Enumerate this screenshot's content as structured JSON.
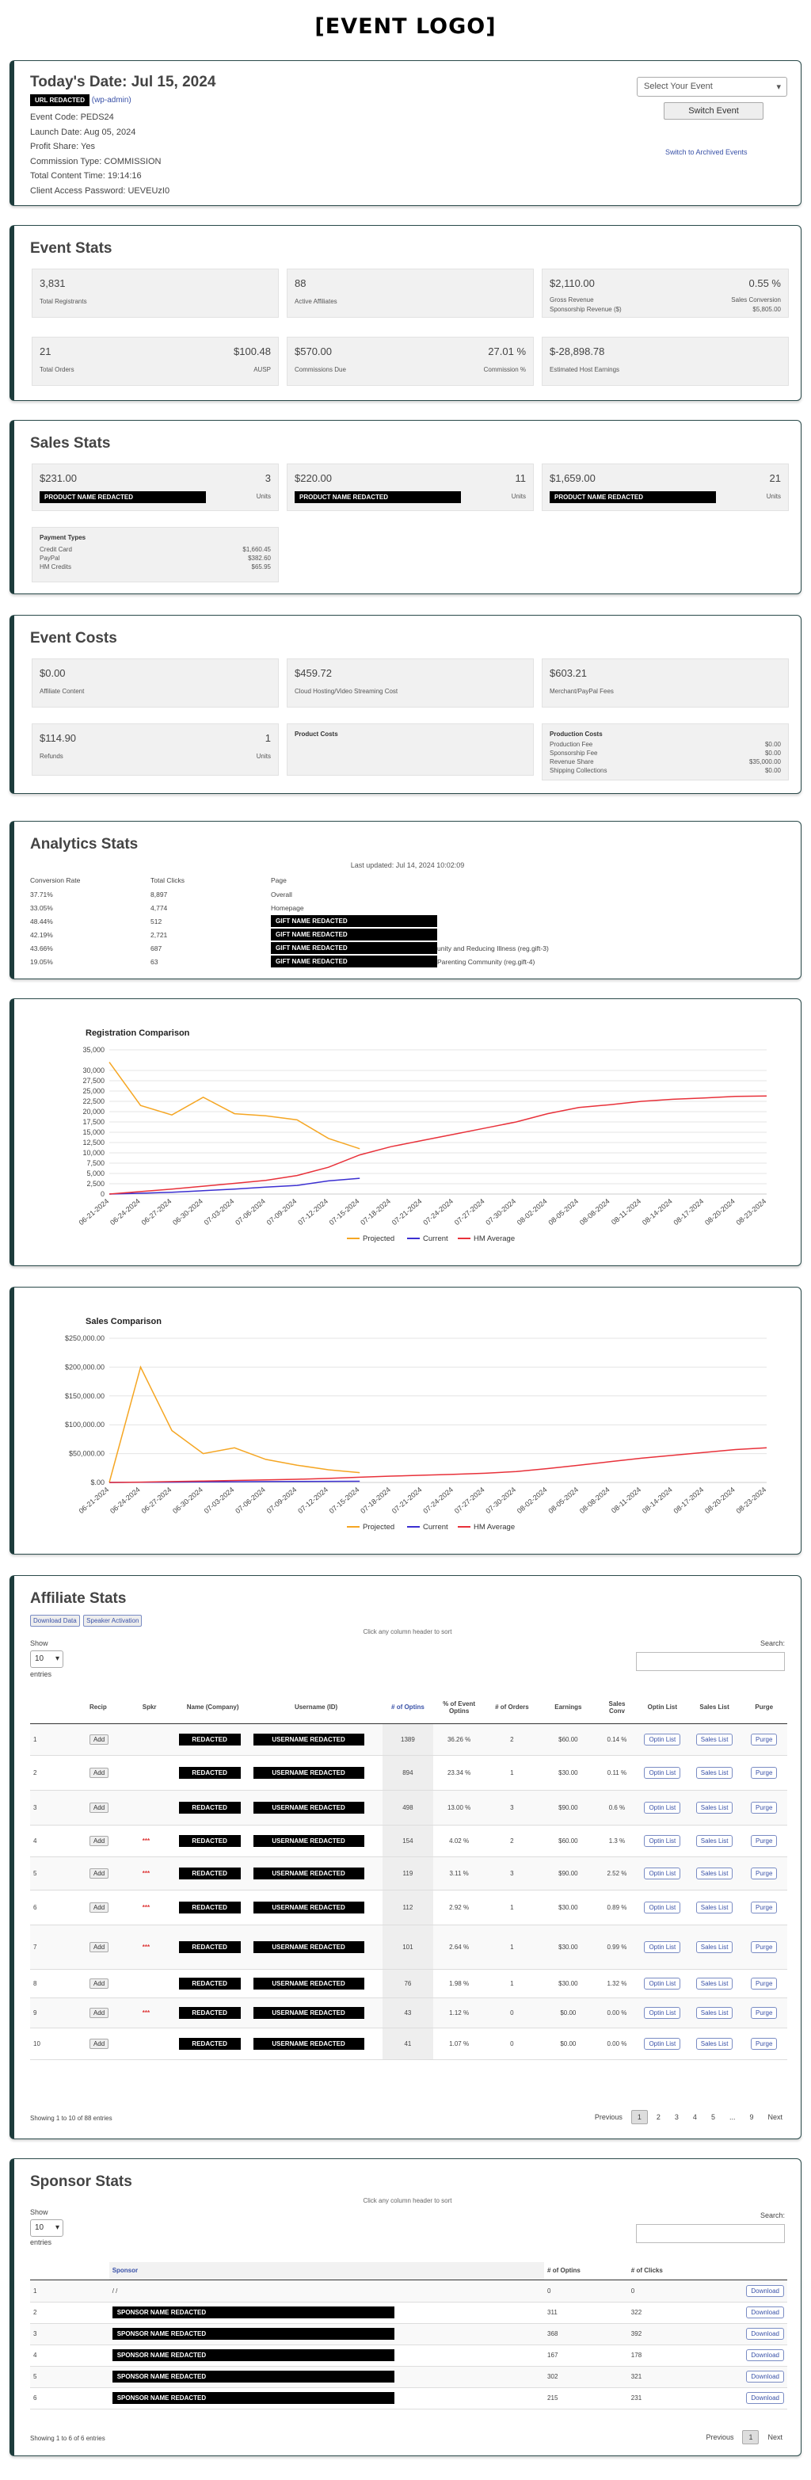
{
  "logo": "[EVENT LOGO]",
  "info": {
    "date_label": "Today's Date: Jul 15, 2024",
    "url": "URL REDACTED",
    "wp_admin": "(wp-admin)",
    "lines": [
      "Event Code: PEDS24",
      "Launch Date: Aug 05, 2024",
      "Profit Share: Yes",
      "Commission Type: COMMISSION",
      "Total Content Time: 19:14:16",
      "Client Access Password: UEVEUzI0"
    ],
    "select_placeholder": "Select Your Event",
    "switch_btn": "Switch Event",
    "archived_link": "Switch to Archived Events"
  },
  "event_stats": {
    "title": "Event Stats",
    "boxes": [
      {
        "v": "3,831",
        "l": "Total Registrants"
      },
      {
        "v": "88",
        "l": "Active Affiliates"
      },
      {
        "v": "$2,110.00",
        "vr": "0.55 %",
        "l": "Gross Revenue",
        "lr": "Sales Conversion",
        "l2": "Sponsorship Revenue ($)",
        "l2r": "$5,805.00"
      },
      {
        "v": "21",
        "vr": "$100.48",
        "l": "Total Orders",
        "lr": "AUSP"
      },
      {
        "v": "$570.00",
        "vr": "27.01 %",
        "l": "Commissions Due",
        "lr": "Commission %"
      },
      {
        "v": "$-28,898.78",
        "l": "Estimated Host Earnings"
      }
    ]
  },
  "sales_stats": {
    "title": "Sales Stats",
    "boxes": [
      {
        "v": "$231.00",
        "vr": "3",
        "name": "PRODUCT NAME REDACTED",
        "lr": "Units"
      },
      {
        "v": "$220.00",
        "vr": "11",
        "name": "PRODUCT NAME REDACTED",
        "lr": "Units"
      },
      {
        "v": "$1,659.00",
        "vr": "21",
        "name": "PRODUCT NAME REDACTED",
        "lr": "Units"
      }
    ],
    "payment": {
      "title": "Payment Types",
      "rows": [
        [
          "Credit Card",
          "$1,660.45"
        ],
        [
          "PayPal",
          "$382.60"
        ],
        [
          "HM Credits",
          "$65.95"
        ]
      ]
    }
  },
  "event_costs": {
    "title": "Event Costs",
    "boxes": [
      {
        "v": "$0.00",
        "l": "Affiliate Content"
      },
      {
        "v": "$459.72",
        "l": "Cloud Hosting/Video Streaming Cost"
      },
      {
        "v": "$603.21",
        "l": "Merchant/PayPal Fees"
      },
      {
        "v": "$114.90",
        "vr": "1",
        "l": "Refunds",
        "lr": "Units"
      }
    ],
    "product_costs": "Product Costs",
    "production": {
      "title": "Production Costs",
      "rows": [
        [
          "Production Fee",
          "$0.00"
        ],
        [
          "Sponsorship Fee",
          "$0.00"
        ],
        [
          "Revenue Share",
          "$35,000.00"
        ],
        [
          "Shipping Collections",
          "$0.00"
        ]
      ]
    }
  },
  "analytics": {
    "title": "Analytics Stats",
    "updated": "Last updated: Jul 14, 2024 10:02:09",
    "headers": [
      "Conversion Rate",
      "Total Clicks",
      "Page"
    ],
    "rows": [
      [
        "37.71%",
        "8,897",
        "Overall",
        ""
      ],
      [
        "33.05%",
        "4,774",
        "Homepage",
        ""
      ],
      [
        "48.44%",
        "512",
        "GIFT NAME REDACTED",
        ""
      ],
      [
        "42.19%",
        "2,721",
        "GIFT NAME REDACTED",
        ""
      ],
      [
        "43.66%",
        "687",
        "GIFT NAME REDACTED",
        "unity and Reducing Illness (reg.gift-3)"
      ],
      [
        "19.05%",
        "63",
        "GIFT NAME REDACTED",
        "Parenting Community (reg.gift-4)"
      ]
    ]
  },
  "reg_chart_title": "Registration Comparison",
  "sales_chart_title": "Sales Comparison",
  "legend": [
    "Projected",
    "Current",
    "HM Average"
  ],
  "chart_data": [
    {
      "type": "line",
      "title": "Registration Comparison",
      "ylim": [
        0,
        35000
      ],
      "yticks": [
        "0",
        "2,500",
        "5,000",
        "7,500",
        "10,000",
        "12,500",
        "15,000",
        "17,500",
        "20,000",
        "22,500",
        "25,000",
        "27,500",
        "30,000",
        "35,000"
      ],
      "x": [
        "06-21-2024",
        "06-24-2024",
        "06-27-2024",
        "06-30-2024",
        "07-03-2024",
        "07-06-2024",
        "07-09-2024",
        "07-12-2024",
        "07-15-2024",
        "07-18-2024",
        "07-21-2024",
        "07-24-2024",
        "07-27-2024",
        "07-30-2024",
        "08-02-2024",
        "08-05-2024",
        "08-08-2024",
        "08-11-2024",
        "08-14-2024",
        "08-17-2024",
        "08-20-2024",
        "08-23-2024"
      ],
      "series": [
        {
          "name": "Projected",
          "color": "#f5a623",
          "values": [
            32000,
            21500,
            19200,
            23500,
            19500,
            19000,
            18000,
            13500,
            11000,
            null,
            null,
            null,
            null,
            null,
            null,
            null,
            null,
            null,
            null,
            null,
            null,
            null
          ]
        },
        {
          "name": "Current",
          "color": "#3b2fd1",
          "values": [
            0,
            200,
            450,
            800,
            1200,
            1700,
            2100,
            3200,
            3831,
            null,
            null,
            null,
            null,
            null,
            null,
            null,
            null,
            null,
            null,
            null,
            null,
            null
          ]
        },
        {
          "name": "HM Average",
          "color": "#e8313a",
          "values": [
            0,
            600,
            1200,
            1900,
            2600,
            3300,
            4500,
            6500,
            9500,
            11500,
            13000,
            14500,
            16000,
            17500,
            19500,
            21000,
            21700,
            22500,
            23000,
            23300,
            23700,
            23800
          ]
        }
      ]
    },
    {
      "type": "line",
      "title": "Sales Comparison",
      "ylim": [
        0,
        250000
      ],
      "yticks": [
        "$.00",
        "$50,000.00",
        "$100,000.00",
        "$150,000.00",
        "$200,000.00",
        "$250,000.00"
      ],
      "x": [
        "06-21-2024",
        "06-24-2024",
        "06-27-2024",
        "06-30-2024",
        "07-03-2024",
        "07-06-2024",
        "07-09-2024",
        "07-12-2024",
        "07-15-2024",
        "07-18-2024",
        "07-21-2024",
        "07-24-2024",
        "07-27-2024",
        "07-30-2024",
        "08-02-2024",
        "08-05-2024",
        "08-08-2024",
        "08-11-2024",
        "08-14-2024",
        "08-17-2024",
        "08-20-2024",
        "08-23-2024"
      ],
      "series": [
        {
          "name": "Projected",
          "color": "#f5a623",
          "values": [
            0,
            200000,
            90000,
            50000,
            60000,
            40000,
            30000,
            22000,
            17000,
            null,
            null,
            null,
            null,
            null,
            null,
            null,
            null,
            null,
            null,
            null,
            null,
            null
          ]
        },
        {
          "name": "Current",
          "color": "#3b2fd1",
          "values": [
            0,
            300,
            600,
            900,
            1200,
            1500,
            1700,
            1900,
            2110,
            null,
            null,
            null,
            null,
            null,
            null,
            null,
            null,
            null,
            null,
            null,
            null,
            null
          ]
        },
        {
          "name": "HM Average",
          "color": "#e8313a",
          "values": [
            0,
            500,
            1500,
            2500,
            3500,
            4500,
            5500,
            7000,
            9000,
            11000,
            12500,
            14000,
            16000,
            19000,
            24000,
            30000,
            36000,
            42000,
            47000,
            52000,
            57000,
            60000
          ]
        }
      ]
    }
  ],
  "affiliates": {
    "title": "Affiliate Stats",
    "btn_download": "Download Data",
    "btn_speaker": "Speaker Activation",
    "sort_hint": "Click any column header to sort",
    "show": "Show",
    "entries": "entries",
    "page_len": "10",
    "search": "Search:",
    "headers": [
      "",
      "Recip",
      "Spkr",
      "Name (Company)",
      "Username (ID)",
      "# of Optins",
      "% of Event Optins",
      "# of Orders",
      "Earnings",
      "Sales Conv",
      "Optin List",
      "Sales List",
      "Purge"
    ],
    "rows": [
      [
        "1",
        "",
        "",
        "REDACTED",
        "USERNAME REDACTED",
        "1389",
        "36.26 %",
        "2",
        "$60.00",
        "0.14 %"
      ],
      [
        "2",
        "",
        "",
        "REDACTED",
        "USERNAME REDACTED",
        "894",
        "23.34 %",
        "1",
        "$30.00",
        "0.11 %"
      ],
      [
        "3",
        "",
        "",
        "REDACTED",
        "USERNAME REDACTED",
        "498",
        "13.00 %",
        "3",
        "$90.00",
        "0.6 %"
      ],
      [
        "4",
        "",
        "***",
        "REDACTED",
        "USERNAME REDACTED",
        "154",
        "4.02 %",
        "2",
        "$60.00",
        "1.3 %"
      ],
      [
        "5",
        "",
        "***",
        "REDACTED",
        "USERNAME REDACTED",
        "119",
        "3.11 %",
        "3",
        "$90.00",
        "2.52 %"
      ],
      [
        "6",
        "",
        "***",
        "REDACTED",
        "USERNAME REDACTED",
        "112",
        "2.92 %",
        "1",
        "$30.00",
        "0.89 %"
      ],
      [
        "7",
        "",
        "***",
        "REDACTED",
        "USERNAME REDACTED",
        "101",
        "2.64 %",
        "1",
        "$30.00",
        "0.99 %"
      ],
      [
        "8",
        "",
        "",
        "REDACTED",
        "USERNAME REDACTED",
        "76",
        "1.98 %",
        "1",
        "$30.00",
        "1.32 %"
      ],
      [
        "9",
        "",
        "***",
        "REDACTED",
        "USERNAME REDACTED",
        "43",
        "1.12 %",
        "0",
        "$0.00",
        "0.00 %"
      ],
      [
        "10",
        "",
        "",
        "REDACTED",
        "USERNAME REDACTED",
        "41",
        "1.07 %",
        "0",
        "$0.00",
        "0.00 %"
      ]
    ],
    "add": "Add",
    "optin_btn": "Optin List",
    "sales_btn": "Sales List",
    "purge_btn": "Purge",
    "showing": "Showing 1 to 10 of 88 entries",
    "pager": [
      "Previous",
      "1",
      "2",
      "3",
      "4",
      "5",
      "...",
      "9",
      "Next"
    ]
  },
  "sponsors": {
    "title": "Sponsor Stats",
    "sort_hint": "Click any column header to sort",
    "show": "Show",
    "entries": "entries",
    "page_len": "10",
    "search": "Search:",
    "headers": [
      "",
      "Sponsor",
      "# of Optins",
      "# of Clicks",
      ""
    ],
    "rows": [
      [
        "1",
        "/ /",
        "0",
        "0"
      ],
      [
        "2",
        "SPONSOR NAME REDACTED",
        "311",
        "322"
      ],
      [
        "3",
        "SPONSOR NAME REDACTED",
        "368",
        "392"
      ],
      [
        "4",
        "SPONSOR NAME REDACTED",
        "167",
        "178"
      ],
      [
        "5",
        "SPONSOR NAME REDACTED",
        "302",
        "321"
      ],
      [
        "6",
        "SPONSOR NAME REDACTED",
        "215",
        "231"
      ]
    ],
    "download": "Download",
    "showing": "Showing 1 to 6 of 6 entries",
    "pager": [
      "Previous",
      "1",
      "Next"
    ]
  }
}
